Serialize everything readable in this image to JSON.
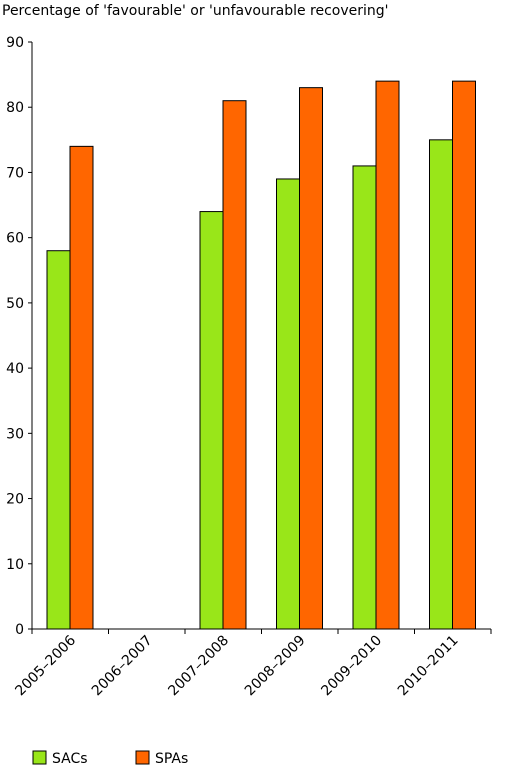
{
  "chart_data": {
    "type": "bar",
    "title": "Percentage of 'favourable' or 'unfavourable recovering'",
    "xlabel": "",
    "ylabel": "",
    "categories": [
      "2005–2006",
      "2006–2007",
      "2007–2008",
      "2008–2009",
      "2009–2010",
      "2010–2011"
    ],
    "series": [
      {
        "name": "SACs",
        "color": "#99e619",
        "values": [
          58,
          null,
          64,
          69,
          71,
          75
        ]
      },
      {
        "name": "SPAs",
        "color": "#ff6600",
        "values": [
          74,
          null,
          81,
          83,
          84,
          84
        ]
      }
    ],
    "ylim": [
      0,
      90
    ],
    "yticks": [
      "0",
      "10",
      "20",
      "30",
      "40",
      "50",
      "60",
      "70",
      "80",
      "90"
    ],
    "grid": false,
    "legend_position": "bottom-left"
  }
}
